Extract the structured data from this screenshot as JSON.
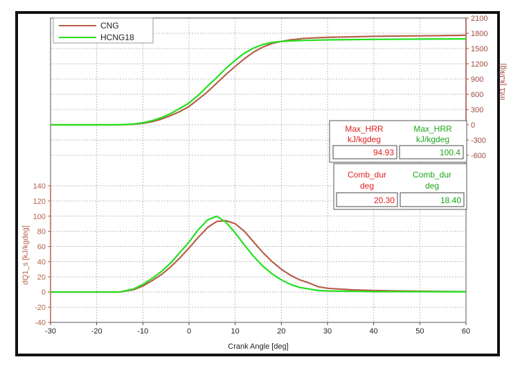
{
  "chart_data": {
    "type": "line",
    "title": "",
    "xlabel": "Crank Angle [deg]",
    "xlim": [
      -30,
      60
    ],
    "xticks": [
      "-30",
      "-20",
      "-10",
      "0",
      "10",
      "20",
      "30",
      "40",
      "50",
      "60"
    ],
    "panels": {
      "upper": {
        "ylabel": "Int1 [kJ/kg]",
        "ylim": [
          -600,
          2100
        ],
        "yticks": [
          "2100",
          "1800",
          "1500",
          "1200",
          "900",
          "600",
          "300",
          "0",
          "-300",
          "-600"
        ],
        "series": [
          {
            "name": "CNG",
            "x": [
              -30,
              -20,
              -15,
              -12,
              -10,
              -8,
              -6,
              -4,
              -2,
              0,
              2,
              4,
              6,
              8,
              10,
              12,
              14,
              16,
              18,
              20,
              22,
              25,
              30,
              40,
              50,
              60
            ],
            "y": [
              0,
              0,
              0,
              10,
              30,
              60,
              110,
              180,
              260,
              360,
              500,
              650,
              820,
              990,
              1150,
              1300,
              1430,
              1530,
              1600,
              1640,
              1670,
              1700,
              1720,
              1740,
              1750,
              1760
            ]
          },
          {
            "name": "HCNG18",
            "x": [
              -30,
              -20,
              -15,
              -12,
              -10,
              -8,
              -6,
              -4,
              -2,
              0,
              2,
              4,
              6,
              8,
              10,
              12,
              14,
              16,
              18,
              20,
              22,
              25,
              30,
              40,
              50,
              60
            ],
            "y": [
              0,
              0,
              0,
              15,
              40,
              80,
              140,
              220,
              320,
              430,
              580,
              760,
              930,
              1110,
              1270,
              1410,
              1510,
              1580,
              1620,
              1640,
              1650,
              1660,
              1670,
              1680,
              1685,
              1690
            ]
          }
        ]
      },
      "lower": {
        "ylabel": "dQ1_s [kJ/kgdeg]",
        "ylim": [
          -40,
          140
        ],
        "yticks": [
          "140",
          "120",
          "100",
          "80",
          "60",
          "40",
          "20",
          "0",
          "-20",
          "-40"
        ],
        "series": [
          {
            "name": "CNG",
            "x": [
              -30,
              -20,
              -15,
              -12,
              -10,
              -8,
              -6,
              -4,
              -2,
              0,
              2,
              4,
              6,
              8,
              10,
              12,
              14,
              16,
              18,
              20,
              22,
              24,
              26,
              28,
              30,
              35,
              40,
              45,
              50,
              60
            ],
            "y": [
              0,
              0,
              0,
              3,
              8,
              15,
              23,
              33,
              45,
              58,
              72,
              85,
              93,
              94,
              90,
              80,
              66,
              52,
              40,
              30,
              22,
              16,
              12,
              7,
              5,
              3,
              2,
              1.5,
              1,
              0.5
            ]
          },
          {
            "name": "HCNG18",
            "x": [
              -30,
              -20,
              -15,
              -12,
              -10,
              -8,
              -6,
              -4,
              -2,
              0,
              2,
              4,
              6,
              8,
              10,
              12,
              14,
              16,
              18,
              20,
              22,
              24,
              26,
              28,
              30,
              35,
              40,
              45,
              50,
              60
            ],
            "y": [
              0,
              0,
              0,
              4,
              10,
              18,
              27,
              38,
              52,
              66,
              82,
              95,
              100,
              92,
              78,
              62,
              47,
              34,
              24,
              16,
              10,
              6,
              4,
              2,
              1.5,
              1,
              0.5,
              0.5,
              0.5,
              0.3
            ]
          }
        ]
      }
    },
    "colors": {
      "CNG": "#b5604a",
      "HCNG18": "#22e01b",
      "axis_left": "#b5604a",
      "axis_right": "#a0493e",
      "value_text": "#e11d1d",
      "green_text": "#1aa51a"
    },
    "legend": {
      "placement": "top-left",
      "entries": [
        "CNG",
        "HCNG18"
      ]
    },
    "grid": true,
    "annotations": {
      "max_hrr": {
        "label_cng": [
          "Max_HRR",
          "kJ/kgdeg"
        ],
        "label_hcng": [
          "Max_HRR",
          "kJ/kgdeg"
        ],
        "value_cng": "94.93",
        "value_hcng": "100.4"
      },
      "comb_dur": {
        "label_cng": [
          "Comb_dur",
          "deg"
        ],
        "label_hcng": [
          "Comb_dur",
          "deg"
        ],
        "value_cng": "20.30",
        "value_hcng": "18.40"
      }
    }
  }
}
